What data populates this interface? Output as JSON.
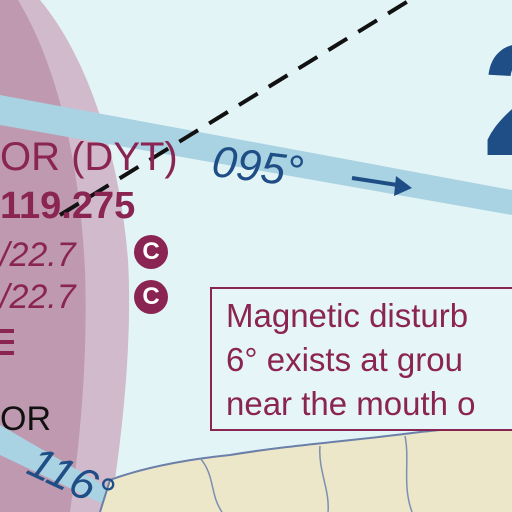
{
  "navaid": {
    "name_line": "OR (DYT)",
    "freq": "119.275",
    "line2_prefix": "/",
    "line2_value": "22.7",
    "line3_prefix": "/",
    "line3_value": "22.7",
    "badge_c1": "C",
    "badge_c2": "C",
    "partial_bottom": "OR"
  },
  "courses": {
    "course_095": "095°",
    "course_116": "116°",
    "arrow": "→"
  },
  "note": {
    "line1": "Magnetic disturb",
    "line2": "6° exists at grou",
    "line3": "near the mouth o"
  },
  "big_numeral": "2",
  "colors": {
    "water": "#e3f4f6",
    "airway": "#a9d3e2",
    "navaid_text": "#8a2452",
    "course_text": "#1f4e86",
    "land": "#ece7c8",
    "shoreline": "#6b7fa8"
  }
}
